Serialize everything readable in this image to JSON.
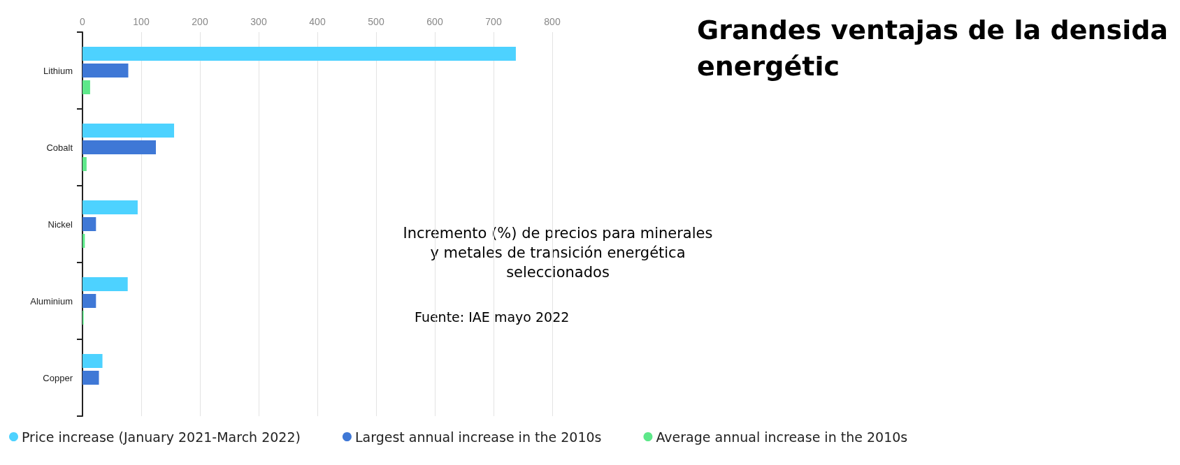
{
  "chart_data": {
    "type": "bar",
    "orientation": "horizontal",
    "title": "Grandes ventajas de la densida\nenergétic",
    "subtitle": "Incremento (%) de precios para minerales\ny metales de transición energética\nseleccionados",
    "annotations": [
      "Fuente: IAE mayo 2022"
    ],
    "categories": [
      "Lithium",
      "Cobalt",
      "Nickel",
      "Aluminium",
      "Copper"
    ],
    "series": [
      {
        "name": "Price increase (January 2021-March 2022)",
        "color": "#4dd2ff",
        "values": [
          738,
          156,
          94,
          77,
          34
        ]
      },
      {
        "name": "Largest annual increase in the 2010s",
        "color": "#3f78d6",
        "values": [
          78,
          125,
          23,
          23,
          28
        ]
      },
      {
        "name": "Average annual increase in the 2010s",
        "color": "#5ee88a",
        "values": [
          13,
          7,
          4,
          2,
          null
        ]
      }
    ],
    "xlim": [
      0,
      800
    ],
    "xticks": [
      0,
      100,
      200,
      300,
      400,
      500,
      600,
      700,
      800
    ],
    "grid": "x",
    "legend": "bottom"
  }
}
